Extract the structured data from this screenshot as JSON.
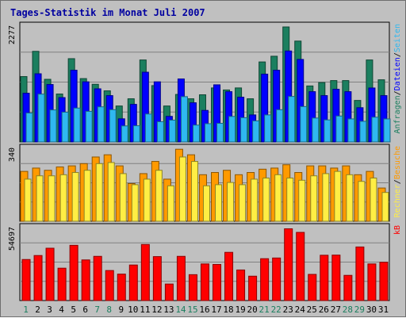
{
  "colors": {
    "background": "#c0c0c0",
    "title": "#0000a0",
    "anfragen": "#1b7f5f",
    "dateien": "#0000ff",
    "seiten": "#2fb8f0",
    "besuche": "#ff9a00",
    "rechner": "#ffee44",
    "kb": "#ff0000",
    "weekend_label": "#1b7f5f",
    "weekday_label": "#000000"
  },
  "chart_data": {
    "type": "bar",
    "title": "Tages-Statistik im Monat Juli 2007",
    "categories": [
      "1",
      "2",
      "3",
      "4",
      "5",
      "6",
      "7",
      "8",
      "9",
      "10",
      "11",
      "12",
      "13",
      "14",
      "15",
      "16",
      "17",
      "18",
      "19",
      "20",
      "21",
      "22",
      "23",
      "24",
      "25",
      "26",
      "27",
      "28",
      "29",
      "30",
      "31"
    ],
    "weekend_days": [
      1,
      7,
      8,
      14,
      15,
      21,
      22,
      28,
      29
    ],
    "panels": [
      {
        "id": "requests",
        "ymax_label": "2277",
        "ylim": [
          0,
          2277
        ],
        "side_labels": [
          "Anfragen",
          "/",
          "Dateien",
          "/",
          "Seiten"
        ],
        "series": [
          {
            "name": "Anfragen",
            "values": [
              1260,
              1746,
              1207,
              924,
              1605,
              1221,
              1111,
              985,
              693,
              832,
              1580,
              1086,
              693,
              916,
              832,
              909,
              1041,
              1002,
              1041,
              832,
              1542,
              1652,
              2216,
              1944,
              1079,
              1145,
              1183,
              1183,
              800,
              1580,
              1198
            ]
          },
          {
            "name": "Dateien",
            "values": [
              939,
              1314,
              1107,
              855,
              1383,
              1159,
              1024,
              893,
              446,
              724,
              1344,
              1159,
              493,
              1214,
              755,
              608,
              1101,
              969,
              863,
              521,
              1307,
              1383,
              1753,
              1590,
              969,
              893,
              1016,
              969,
              660,
              1040,
              893
            ]
          },
          {
            "name": "Seiten",
            "values": [
              558,
              922,
              617,
              574,
              653,
              590,
              677,
              622,
              309,
              312,
              539,
              390,
              421,
              873,
              325,
              352,
              359,
              492,
              468,
              406,
              521,
              621,
              877,
              682,
              461,
              425,
              500,
              444,
              398,
              477,
              444
            ]
          }
        ]
      },
      {
        "id": "visits",
        "ymax_label": "340",
        "ylim": [
          0,
          340
        ],
        "side_labels": [
          "Rechner",
          "/",
          "Besuche"
        ],
        "series": [
          {
            "name": "Besuche",
            "values": [
              225,
              240,
              230,
              245,
              250,
              260,
              290,
              300,
              250,
              170,
              215,
              270,
              190,
              325,
              300,
              210,
              220,
              230,
              210,
              220,
              235,
              240,
              255,
              220,
              250,
              250,
              240,
              250,
              210,
              225,
              150
            ]
          },
          {
            "name": "Rechner",
            "values": [
              190,
              205,
              205,
              210,
              220,
              230,
              260,
              265,
              215,
              165,
              190,
              230,
              160,
              290,
              270,
              160,
              165,
              175,
              165,
              190,
              195,
              210,
              195,
              185,
              205,
              215,
              225,
              210,
              180,
              195,
              130
            ]
          }
        ]
      },
      {
        "id": "kb",
        "ymax_label": "54697",
        "ylim": [
          0,
          54697
        ],
        "side_labels": [
          "kB"
        ],
        "series": [
          {
            "name": "kB",
            "values": [
              29800,
              32700,
              38000,
              23500,
              40100,
              29500,
              32100,
              21800,
              19200,
              25800,
              40700,
              31900,
              12000,
              32100,
              18800,
              26600,
              26200,
              35000,
              22200,
              17700,
              30400,
              30900,
              52100,
              49500,
              19000,
              32900,
              33000,
              18300,
              38900,
              26600,
              27800
            ]
          }
        ]
      }
    ]
  }
}
